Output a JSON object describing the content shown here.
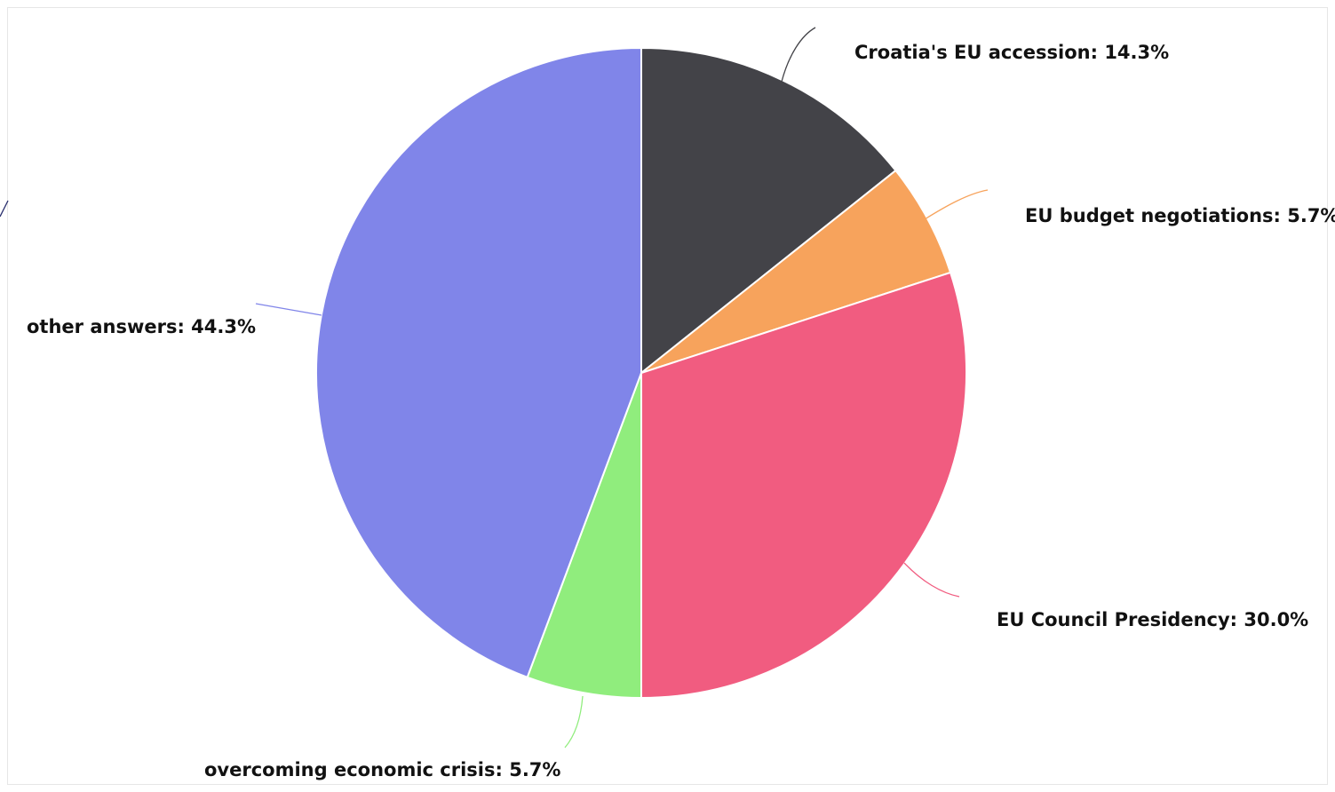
{
  "chart_data": {
    "type": "pie",
    "title": "",
    "slices": [
      {
        "label": "Croatia's EU accession",
        "value": 14.3,
        "value_text": "14.3%",
        "color": "#434348"
      },
      {
        "label": "EU budget negotiations",
        "value": 5.7,
        "value_text": "5.7%",
        "color": "#f7a35c"
      },
      {
        "label": "EU Council Presidency",
        "value": 30.0,
        "value_text": "30.0%",
        "color": "#f15c80"
      },
      {
        "label": "overcoming economic crisis",
        "value": 5.7,
        "value_text": "5.7%",
        "color": "#90ed7d"
      },
      {
        "label": "other answers",
        "value": 44.3,
        "value_text": "44.3%",
        "color": "#8085e9"
      }
    ],
    "start_angle": "12 o'clock",
    "direction": "clockwise",
    "data_labels": "outside with connector lines",
    "legend": "none"
  }
}
